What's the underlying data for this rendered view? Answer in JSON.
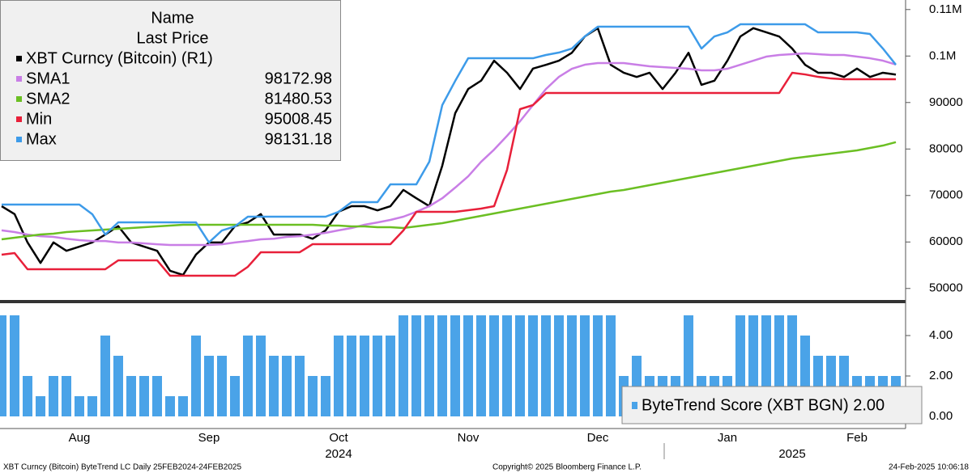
{
  "chart_data": [
    {
      "type": "line",
      "legend_header": [
        "Name",
        "Last Price"
      ],
      "ylim": [
        47700,
        112050
      ],
      "yticks": [
        {
          "value": 110000,
          "label": "0.11M"
        },
        {
          "value": 100000,
          "label": "0.1M"
        },
        90000,
        80000,
        70000,
        60000,
        50000
      ],
      "series": [
        {
          "name": "XBT Curncy (Bitcoin)  (R1)",
          "color": "#000000",
          "values": [
            67700,
            66000,
            59900,
            55500,
            59900,
            58100,
            59000,
            59900,
            61600,
            63400,
            59900,
            59000,
            58100,
            53800,
            52900,
            57300,
            59900,
            59900,
            63400,
            64200,
            66000,
            61600,
            61600,
            61600,
            60700,
            62500,
            66500,
            67700,
            67700,
            66800,
            67700,
            71200,
            69400,
            67700,
            76400,
            87700,
            92900,
            94700,
            99000,
            96400,
            92900,
            97300,
            98100,
            99000,
            100700,
            104200,
            106000,
            98100,
            96400,
            95500,
            96400,
            92900,
            96400,
            100700,
            93800,
            94700,
            99000,
            104200,
            106000,
            105100,
            104200,
            101600,
            98100,
            96400,
            96400,
            95500,
            97300,
            95500,
            96400,
            96000
          ]
        },
        {
          "name": "SMA1",
          "color": "#c97ee6",
          "last_value": 98172.98,
          "values": [
            62500,
            62130,
            61600,
            61250,
            61100,
            60700,
            60400,
            60200,
            60200,
            59900,
            59900,
            59700,
            59500,
            59350,
            59350,
            59350,
            59350,
            59500,
            59900,
            60200,
            60570,
            60700,
            61100,
            61250,
            61600,
            61960,
            62500,
            63000,
            63700,
            64200,
            64740,
            65440,
            66500,
            67700,
            69400,
            71700,
            74130,
            77260,
            79870,
            82830,
            85960,
            89440,
            92900,
            95520,
            97260,
            98130,
            98480,
            98480,
            98480,
            98130,
            97780,
            97610,
            97440,
            97260,
            96910,
            96910,
            97260,
            98130,
            99000,
            99870,
            100220,
            100390,
            100570,
            100390,
            100220,
            100220,
            99870,
            99520,
            99000,
            98170
          ]
        },
        {
          "name": "SMA2",
          "color": "#6bbf23",
          "last_value": 81480.53,
          "values": [
            60570,
            60920,
            61260,
            61610,
            61790,
            62130,
            62310,
            62480,
            62660,
            62830,
            63000,
            63180,
            63350,
            63520,
            63700,
            63700,
            63700,
            63700,
            63700,
            63700,
            63700,
            63700,
            63700,
            63700,
            63700,
            63520,
            63520,
            63350,
            63350,
            63180,
            63180,
            63000,
            63350,
            63700,
            64050,
            64570,
            65090,
            65610,
            66130,
            66660,
            67180,
            67700,
            68220,
            68740,
            69260,
            69790,
            70310,
            70830,
            71180,
            71700,
            72220,
            72740,
            73260,
            73790,
            74310,
            74830,
            75350,
            75870,
            76390,
            76920,
            77440,
            77960,
            78310,
            78650,
            79000,
            79350,
            79700,
            80220,
            80740,
            81480
          ]
        },
        {
          "name": "Min",
          "color": "#e8203a",
          "last_value": 95008.45,
          "values": [
            57260,
            57610,
            54130,
            54130,
            54130,
            54130,
            54130,
            54130,
            54130,
            56050,
            56050,
            56050,
            56050,
            52740,
            52740,
            52740,
            52740,
            52740,
            52740,
            54660,
            57790,
            57790,
            57790,
            57790,
            59530,
            59530,
            59530,
            59530,
            59530,
            59530,
            59530,
            62480,
            66480,
            66480,
            66480,
            66480,
            66830,
            67180,
            67700,
            75520,
            88570,
            89440,
            92050,
            92050,
            92050,
            92050,
            92050,
            92050,
            92050,
            92050,
            92050,
            92050,
            92050,
            92050,
            92050,
            92050,
            92050,
            92050,
            92050,
            92050,
            92050,
            96390,
            96040,
            95520,
            95170,
            95010,
            95010,
            95010,
            95010,
            95010
          ]
        },
        {
          "name": "Max",
          "color": "#3d9be9",
          "last_value": 98131.18,
          "values": [
            68050,
            68050,
            68050,
            68050,
            68050,
            68050,
            68050,
            65960,
            61610,
            64220,
            64220,
            64220,
            64220,
            64220,
            64220,
            64220,
            59900,
            62480,
            63350,
            65440,
            65440,
            65440,
            65440,
            65440,
            65440,
            65440,
            66480,
            68570,
            68570,
            68570,
            72390,
            72390,
            72390,
            77260,
            89440,
            94650,
            99520,
            99520,
            99520,
            99520,
            99520,
            99520,
            100220,
            100740,
            101610,
            104220,
            106300,
            106300,
            106300,
            106300,
            106300,
            106300,
            106300,
            106300,
            101610,
            104220,
            105090,
            106830,
            106830,
            106830,
            106830,
            106830,
            106830,
            105090,
            105090,
            105090,
            105090,
            104740,
            101610,
            98130
          ]
        }
      ]
    },
    {
      "type": "bar",
      "categories": [
        null,
        null,
        null,
        null,
        null,
        null,
        "Aug",
        null,
        null,
        null,
        null,
        null,
        null,
        null,
        null,
        null,
        "Sep",
        null,
        null,
        null,
        null,
        null,
        null,
        null,
        null,
        null,
        "Oct",
        null,
        null,
        null,
        null,
        null,
        null,
        null,
        null,
        null,
        "Nov",
        null,
        null,
        null,
        null,
        null,
        null,
        null,
        null,
        null,
        "Dec",
        null,
        null,
        null,
        null,
        null,
        null,
        null,
        null,
        null,
        "Jan",
        null,
        null,
        null,
        null,
        null,
        null,
        null,
        null,
        null,
        "Feb",
        null,
        null,
        null
      ],
      "years": [
        null,
        null,
        null,
        null,
        null,
        null,
        null,
        null,
        null,
        null,
        null,
        null,
        null,
        null,
        null,
        null,
        null,
        null,
        null,
        null,
        null,
        null,
        null,
        null,
        null,
        null,
        "2024",
        null,
        null,
        null,
        null,
        null,
        null,
        null,
        null,
        null,
        null,
        null,
        null,
        null,
        null,
        null,
        null,
        null,
        null,
        null,
        null,
        null,
        null,
        null,
        null,
        null,
        null,
        null,
        null,
        null,
        null,
        null,
        null,
        null,
        null,
        "2025",
        null,
        null,
        null,
        null,
        null,
        null,
        null,
        null
      ],
      "ylim": [
        -0.6,
        5.48
      ],
      "yticks": [
        {
          "value": 4,
          "label": "4.00"
        },
        {
          "value": 2,
          "label": "2.00"
        },
        {
          "value": 0,
          "label": "0.00"
        }
      ],
      "series": [
        {
          "name": "ByteTrend Score (XBT BGN) 2.00",
          "color": "#4aa3e8",
          "values": [
            5,
            5,
            2,
            1,
            2,
            2,
            1,
            1,
            4,
            3,
            2,
            2,
            2,
            1,
            1,
            4,
            3,
            3,
            2,
            4,
            4,
            3,
            3,
            3,
            2,
            2,
            4,
            4,
            4,
            4,
            4,
            5,
            5,
            5,
            5,
            5,
            5,
            5,
            5,
            5,
            5,
            5,
            5,
            5,
            5,
            5,
            5,
            5,
            2,
            3,
            2,
            2,
            2,
            5,
            2,
            2,
            2,
            5,
            5,
            5,
            5,
            5,
            4,
            3,
            3,
            3,
            2,
            2,
            2,
            2
          ]
        }
      ]
    }
  ],
  "footer": {
    "left": "XBT Curncy (Bitcoin) ByteTrend LC  Daily 25FEB2024-24FEB2025",
    "center": "Copyright© 2025 Bloomberg Finance L.P.",
    "right": "24-Feb-2025 10:06:18"
  }
}
